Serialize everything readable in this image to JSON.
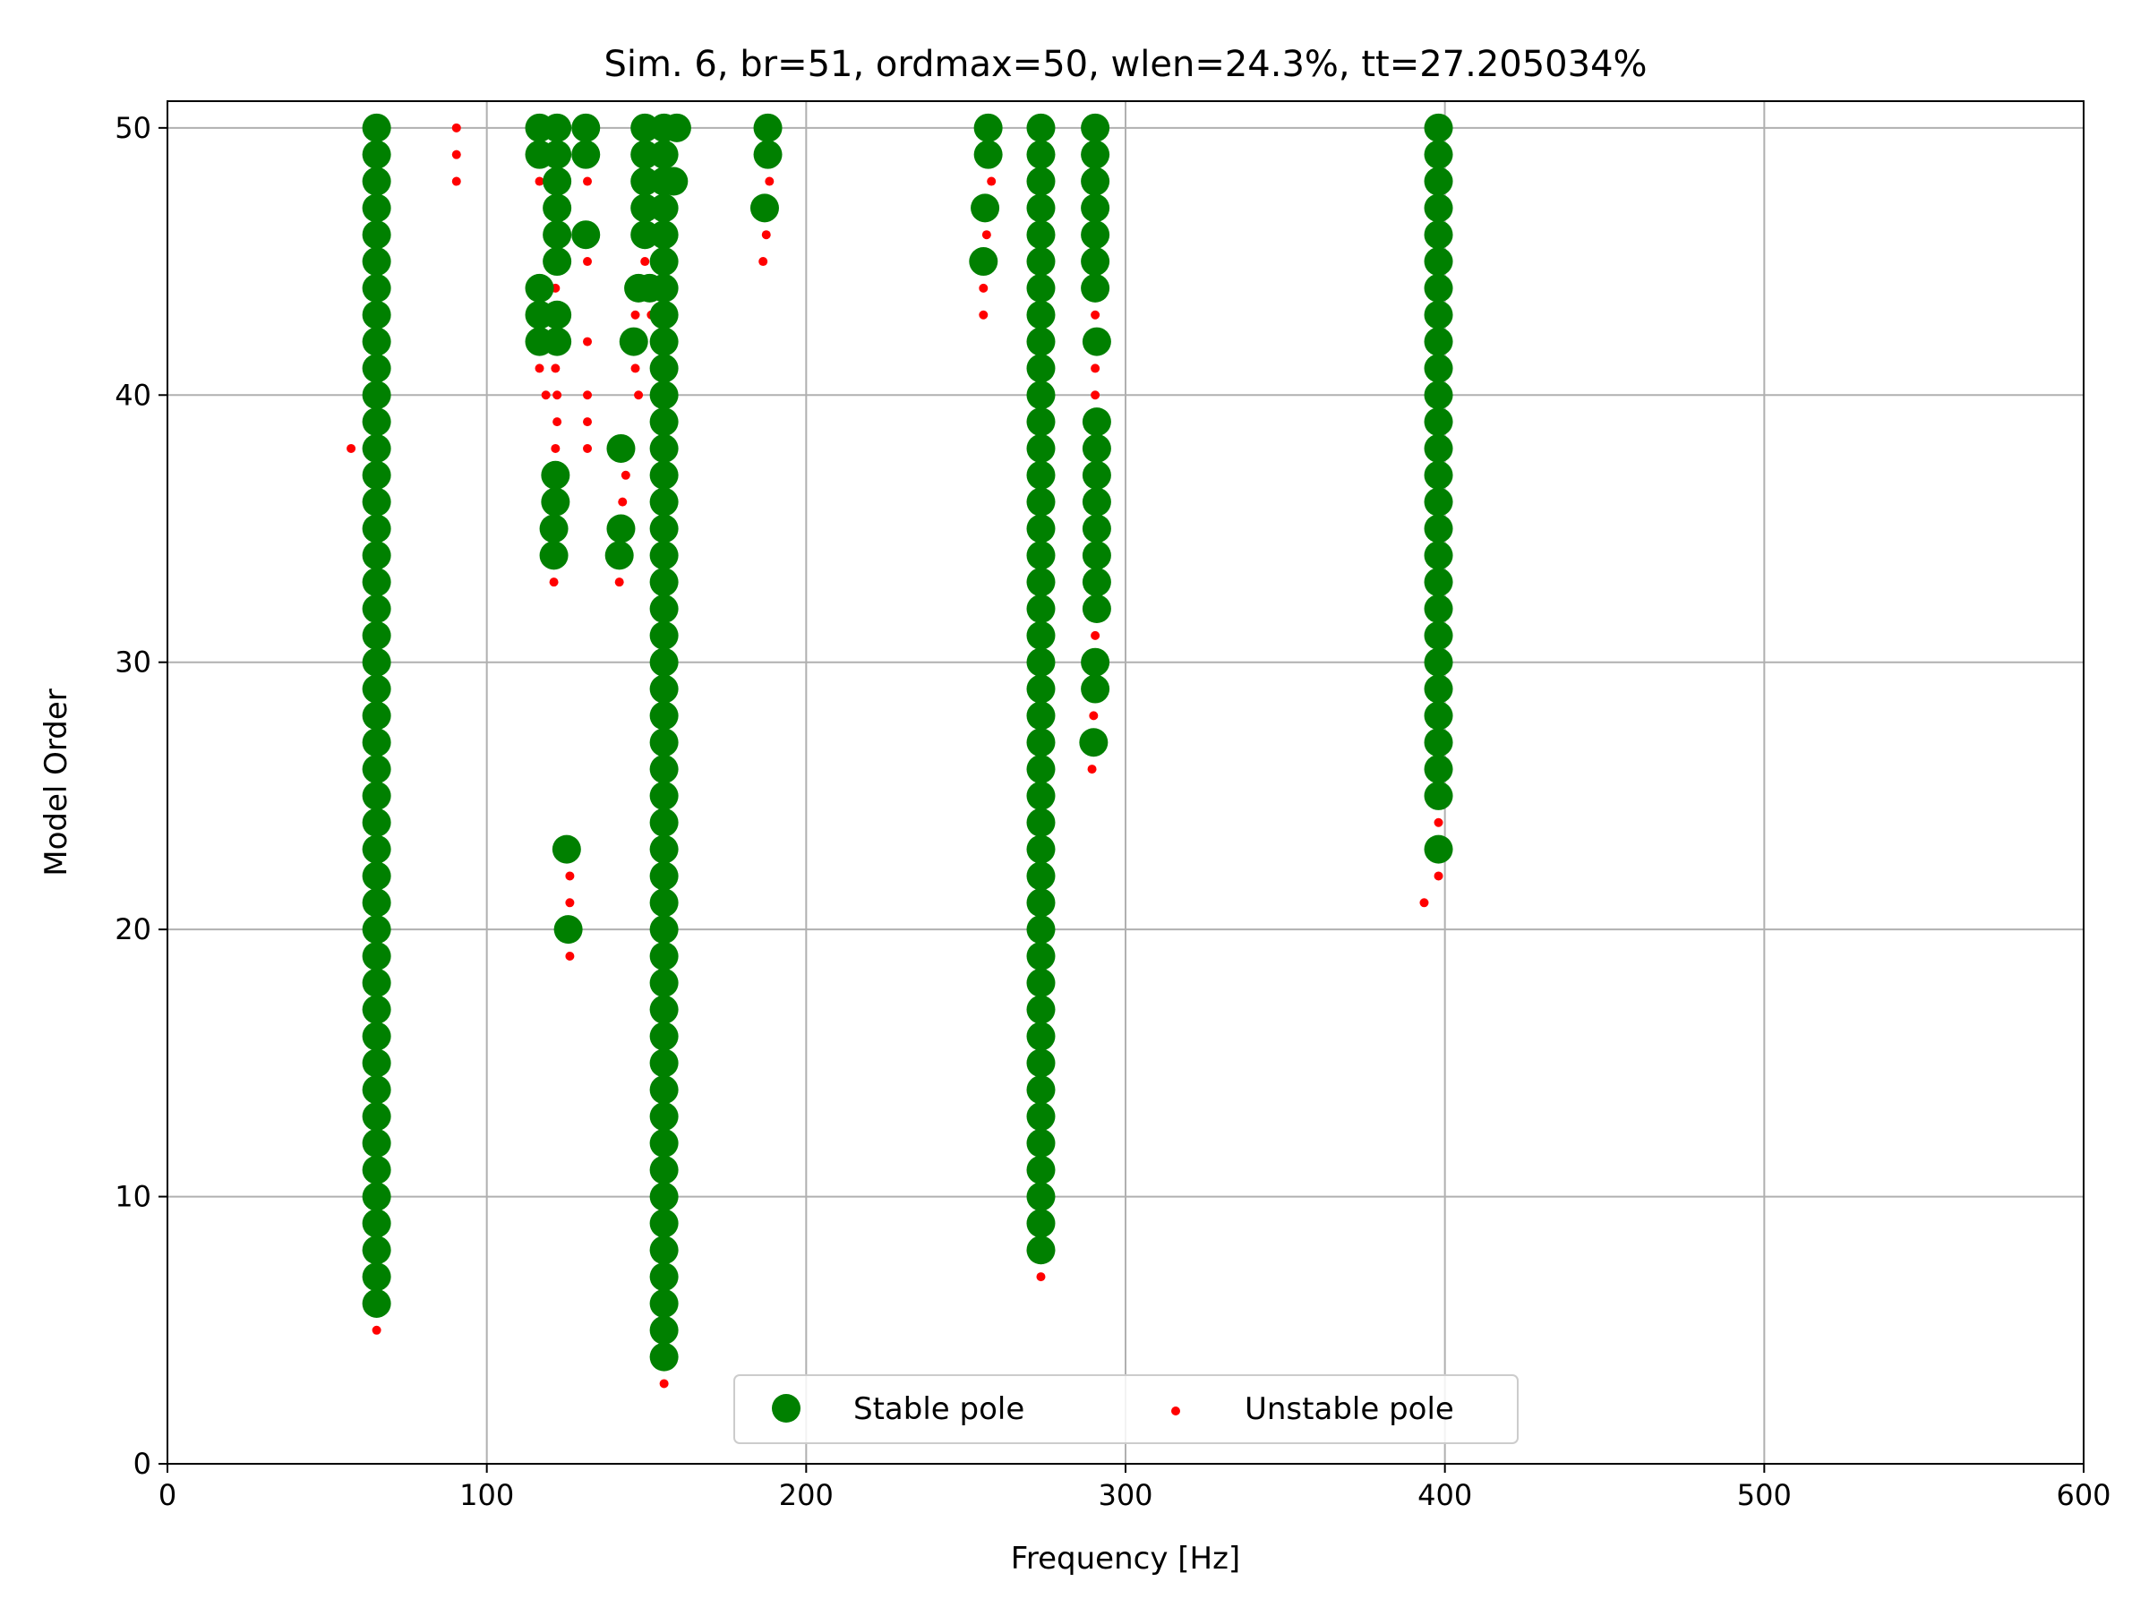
{
  "chart_data": {
    "type": "scatter",
    "title": "Sim. 6, br=51, ordmax=50, wlen=24.3%, tt=27.205034%",
    "xlabel": "Frequency [Hz]",
    "ylabel": "Model Order",
    "xlim": [
      0,
      600
    ],
    "ylim": [
      0,
      51
    ],
    "xticks": [
      0,
      100,
      200,
      300,
      400,
      500,
      600
    ],
    "yticks": [
      0,
      10,
      20,
      30,
      40,
      50
    ],
    "xtick_labels": [
      "0",
      "100",
      "200",
      "300",
      "400",
      "500",
      "600"
    ],
    "ytick_labels": [
      "0",
      "10",
      "20",
      "30",
      "40",
      "50"
    ],
    "grid": true,
    "legend": {
      "position": "lower-center",
      "columns": 2
    },
    "series": [
      {
        "name": "Stable pole",
        "color": "#008000",
        "marker": "large-circle",
        "points": [
          [
            65.5,
            6
          ],
          [
            65.5,
            7
          ],
          [
            65.5,
            8
          ],
          [
            65.5,
            9
          ],
          [
            65.5,
            10
          ],
          [
            65.5,
            11
          ],
          [
            65.5,
            12
          ],
          [
            65.5,
            13
          ],
          [
            65.5,
            14
          ],
          [
            65.5,
            15
          ],
          [
            65.5,
            16
          ],
          [
            65.5,
            17
          ],
          [
            65.5,
            18
          ],
          [
            65.5,
            19
          ],
          [
            65.5,
            20
          ],
          [
            65.5,
            21
          ],
          [
            65.5,
            22
          ],
          [
            65.5,
            23
          ],
          [
            65.5,
            24
          ],
          [
            65.5,
            25
          ],
          [
            65.5,
            26
          ],
          [
            65.5,
            27
          ],
          [
            65.5,
            28
          ],
          [
            65.5,
            29
          ],
          [
            65.5,
            30
          ],
          [
            65.5,
            31
          ],
          [
            65.5,
            32
          ],
          [
            65.5,
            33
          ],
          [
            65.5,
            34
          ],
          [
            65.5,
            35
          ],
          [
            65.5,
            36
          ],
          [
            65.5,
            37
          ],
          [
            65.5,
            38
          ],
          [
            65.5,
            39
          ],
          [
            65.5,
            40
          ],
          [
            65.5,
            41
          ],
          [
            65.5,
            42
          ],
          [
            65.5,
            43
          ],
          [
            65.5,
            44
          ],
          [
            65.5,
            45
          ],
          [
            65.5,
            46
          ],
          [
            65.5,
            47
          ],
          [
            65.5,
            48
          ],
          [
            65.5,
            49
          ],
          [
            65.5,
            50
          ],
          [
            116.5,
            50
          ],
          [
            116.5,
            49
          ],
          [
            116.5,
            44
          ],
          [
            116.5,
            43
          ],
          [
            116.5,
            42
          ],
          [
            122,
            50
          ],
          [
            122,
            49
          ],
          [
            122,
            48
          ],
          [
            122,
            47
          ],
          [
            122,
            46
          ],
          [
            122,
            45
          ],
          [
            122,
            43
          ],
          [
            122,
            42
          ],
          [
            121.5,
            37
          ],
          [
            121.5,
            36
          ],
          [
            121,
            35
          ],
          [
            121,
            34
          ],
          [
            125,
            23
          ],
          [
            125.5,
            20
          ],
          [
            131,
            50
          ],
          [
            131,
            49
          ],
          [
            131,
            46
          ],
          [
            142,
            38
          ],
          [
            142,
            35
          ],
          [
            141.5,
            34
          ],
          [
            146,
            42
          ],
          [
            147.5,
            44
          ],
          [
            149.5,
            50
          ],
          [
            149.5,
            49
          ],
          [
            149.5,
            48
          ],
          [
            149.5,
            47
          ],
          [
            149.5,
            46
          ],
          [
            151,
            44
          ],
          [
            155.5,
            4
          ],
          [
            155.5,
            5
          ],
          [
            155.5,
            6
          ],
          [
            155.5,
            7
          ],
          [
            155.5,
            8
          ],
          [
            155.5,
            9
          ],
          [
            155.5,
            10
          ],
          [
            155.5,
            11
          ],
          [
            155.5,
            12
          ],
          [
            155.5,
            13
          ],
          [
            155.5,
            14
          ],
          [
            155.5,
            15
          ],
          [
            155.5,
            16
          ],
          [
            155.5,
            17
          ],
          [
            155.5,
            18
          ],
          [
            155.5,
            19
          ],
          [
            155.5,
            20
          ],
          [
            155.5,
            21
          ],
          [
            155.5,
            22
          ],
          [
            155.5,
            23
          ],
          [
            155.5,
            24
          ],
          [
            155.5,
            25
          ],
          [
            155.5,
            26
          ],
          [
            155.5,
            27
          ],
          [
            155.5,
            28
          ],
          [
            155.5,
            29
          ],
          [
            155.5,
            30
          ],
          [
            155.5,
            31
          ],
          [
            155.5,
            32
          ],
          [
            155.5,
            33
          ],
          [
            155.5,
            34
          ],
          [
            155.5,
            35
          ],
          [
            155.5,
            36
          ],
          [
            155.5,
            37
          ],
          [
            155.5,
            38
          ],
          [
            155.5,
            39
          ],
          [
            155.5,
            40
          ],
          [
            155.5,
            41
          ],
          [
            155.5,
            42
          ],
          [
            155.5,
            43
          ],
          [
            155.5,
            44
          ],
          [
            155.5,
            45
          ],
          [
            155.5,
            46
          ],
          [
            155.5,
            47
          ],
          [
            155.5,
            48
          ],
          [
            155.5,
            49
          ],
          [
            155.5,
            50
          ],
          [
            158.5,
            48
          ],
          [
            159.5,
            50
          ],
          [
            188,
            50
          ],
          [
            188,
            49
          ],
          [
            187,
            47
          ],
          [
            257,
            50
          ],
          [
            257,
            49
          ],
          [
            256,
            47
          ],
          [
            255.5,
            45
          ],
          [
            273.5,
            8
          ],
          [
            273.5,
            9
          ],
          [
            273.5,
            10
          ],
          [
            273.5,
            11
          ],
          [
            273.5,
            12
          ],
          [
            273.5,
            13
          ],
          [
            273.5,
            14
          ],
          [
            273.5,
            15
          ],
          [
            273.5,
            16
          ],
          [
            273.5,
            17
          ],
          [
            273.5,
            18
          ],
          [
            273.5,
            19
          ],
          [
            273.5,
            20
          ],
          [
            273.5,
            21
          ],
          [
            273.5,
            22
          ],
          [
            273.5,
            23
          ],
          [
            273.5,
            24
          ],
          [
            273.5,
            25
          ],
          [
            273.5,
            26
          ],
          [
            273.5,
            27
          ],
          [
            273.5,
            28
          ],
          [
            273.5,
            29
          ],
          [
            273.5,
            30
          ],
          [
            273.5,
            31
          ],
          [
            273.5,
            32
          ],
          [
            273.5,
            33
          ],
          [
            273.5,
            34
          ],
          [
            273.5,
            35
          ],
          [
            273.5,
            36
          ],
          [
            273.5,
            37
          ],
          [
            273.5,
            38
          ],
          [
            273.5,
            39
          ],
          [
            273.5,
            40
          ],
          [
            273.5,
            41
          ],
          [
            273.5,
            42
          ],
          [
            273.5,
            43
          ],
          [
            273.5,
            44
          ],
          [
            273.5,
            45
          ],
          [
            273.5,
            46
          ],
          [
            273.5,
            47
          ],
          [
            273.5,
            48
          ],
          [
            273.5,
            49
          ],
          [
            273.5,
            50
          ],
          [
            290.5,
            50
          ],
          [
            290.5,
            49
          ],
          [
            290.5,
            48
          ],
          [
            290.5,
            47
          ],
          [
            290.5,
            46
          ],
          [
            290.5,
            45
          ],
          [
            290.5,
            44
          ],
          [
            291,
            42
          ],
          [
            291,
            39
          ],
          [
            291,
            38
          ],
          [
            291,
            37
          ],
          [
            291,
            36
          ],
          [
            291,
            35
          ],
          [
            291,
            34
          ],
          [
            291,
            33
          ],
          [
            291,
            32
          ],
          [
            290.5,
            30
          ],
          [
            290.5,
            29
          ],
          [
            290,
            27
          ],
          [
            398,
            23
          ],
          [
            398,
            25
          ],
          [
            398,
            26
          ],
          [
            398,
            27
          ],
          [
            398,
            28
          ],
          [
            398,
            29
          ],
          [
            398,
            30
          ],
          [
            398,
            31
          ],
          [
            398,
            32
          ],
          [
            398,
            33
          ],
          [
            398,
            34
          ],
          [
            398,
            35
          ],
          [
            398,
            36
          ],
          [
            398,
            37
          ],
          [
            398,
            38
          ],
          [
            398,
            39
          ],
          [
            398,
            40
          ],
          [
            398,
            41
          ],
          [
            398,
            42
          ],
          [
            398,
            43
          ],
          [
            398,
            44
          ],
          [
            398,
            45
          ],
          [
            398,
            46
          ],
          [
            398,
            47
          ],
          [
            398,
            48
          ],
          [
            398,
            49
          ],
          [
            398,
            50
          ]
        ]
      },
      {
        "name": "Unstable pole",
        "color": "#ff0000",
        "marker": "small-dot",
        "points": [
          [
            57.5,
            38
          ],
          [
            65.5,
            5
          ],
          [
            63.5,
            39
          ],
          [
            63.5,
            41
          ],
          [
            63.5,
            43
          ],
          [
            63.5,
            44
          ],
          [
            63.5,
            45
          ],
          [
            63.5,
            46
          ],
          [
            63.5,
            47
          ],
          [
            63.5,
            48
          ],
          [
            90.5,
            50
          ],
          [
            90.5,
            49
          ],
          [
            90.5,
            48
          ],
          [
            116.5,
            48
          ],
          [
            116.5,
            41
          ],
          [
            118.5,
            40
          ],
          [
            121.5,
            44
          ],
          [
            121.5,
            41
          ],
          [
            122,
            40
          ],
          [
            122,
            39
          ],
          [
            121.5,
            38
          ],
          [
            121,
            33
          ],
          [
            126,
            22
          ],
          [
            126,
            21
          ],
          [
            126,
            19
          ],
          [
            131.5,
            48
          ],
          [
            131.5,
            45
          ],
          [
            131.5,
            42
          ],
          [
            131.5,
            40
          ],
          [
            131.5,
            39
          ],
          [
            131.5,
            38
          ],
          [
            141.5,
            33
          ],
          [
            142.5,
            36
          ],
          [
            143.5,
            37
          ],
          [
            146.5,
            41
          ],
          [
            146.5,
            43
          ],
          [
            147.5,
            40
          ],
          [
            149.5,
            45
          ],
          [
            151.5,
            43
          ],
          [
            155.5,
            3
          ],
          [
            186.5,
            45
          ],
          [
            187.5,
            46
          ],
          [
            188.5,
            48
          ],
          [
            255.5,
            43
          ],
          [
            255.5,
            44
          ],
          [
            256.5,
            46
          ],
          [
            258,
            48
          ],
          [
            273.5,
            7
          ],
          [
            289.5,
            26
          ],
          [
            290,
            28
          ],
          [
            290.5,
            31
          ],
          [
            290.5,
            40
          ],
          [
            290.5,
            41
          ],
          [
            290.5,
            43
          ],
          [
            393.5,
            21
          ],
          [
            398,
            22
          ],
          [
            398,
            24
          ]
        ]
      }
    ]
  }
}
